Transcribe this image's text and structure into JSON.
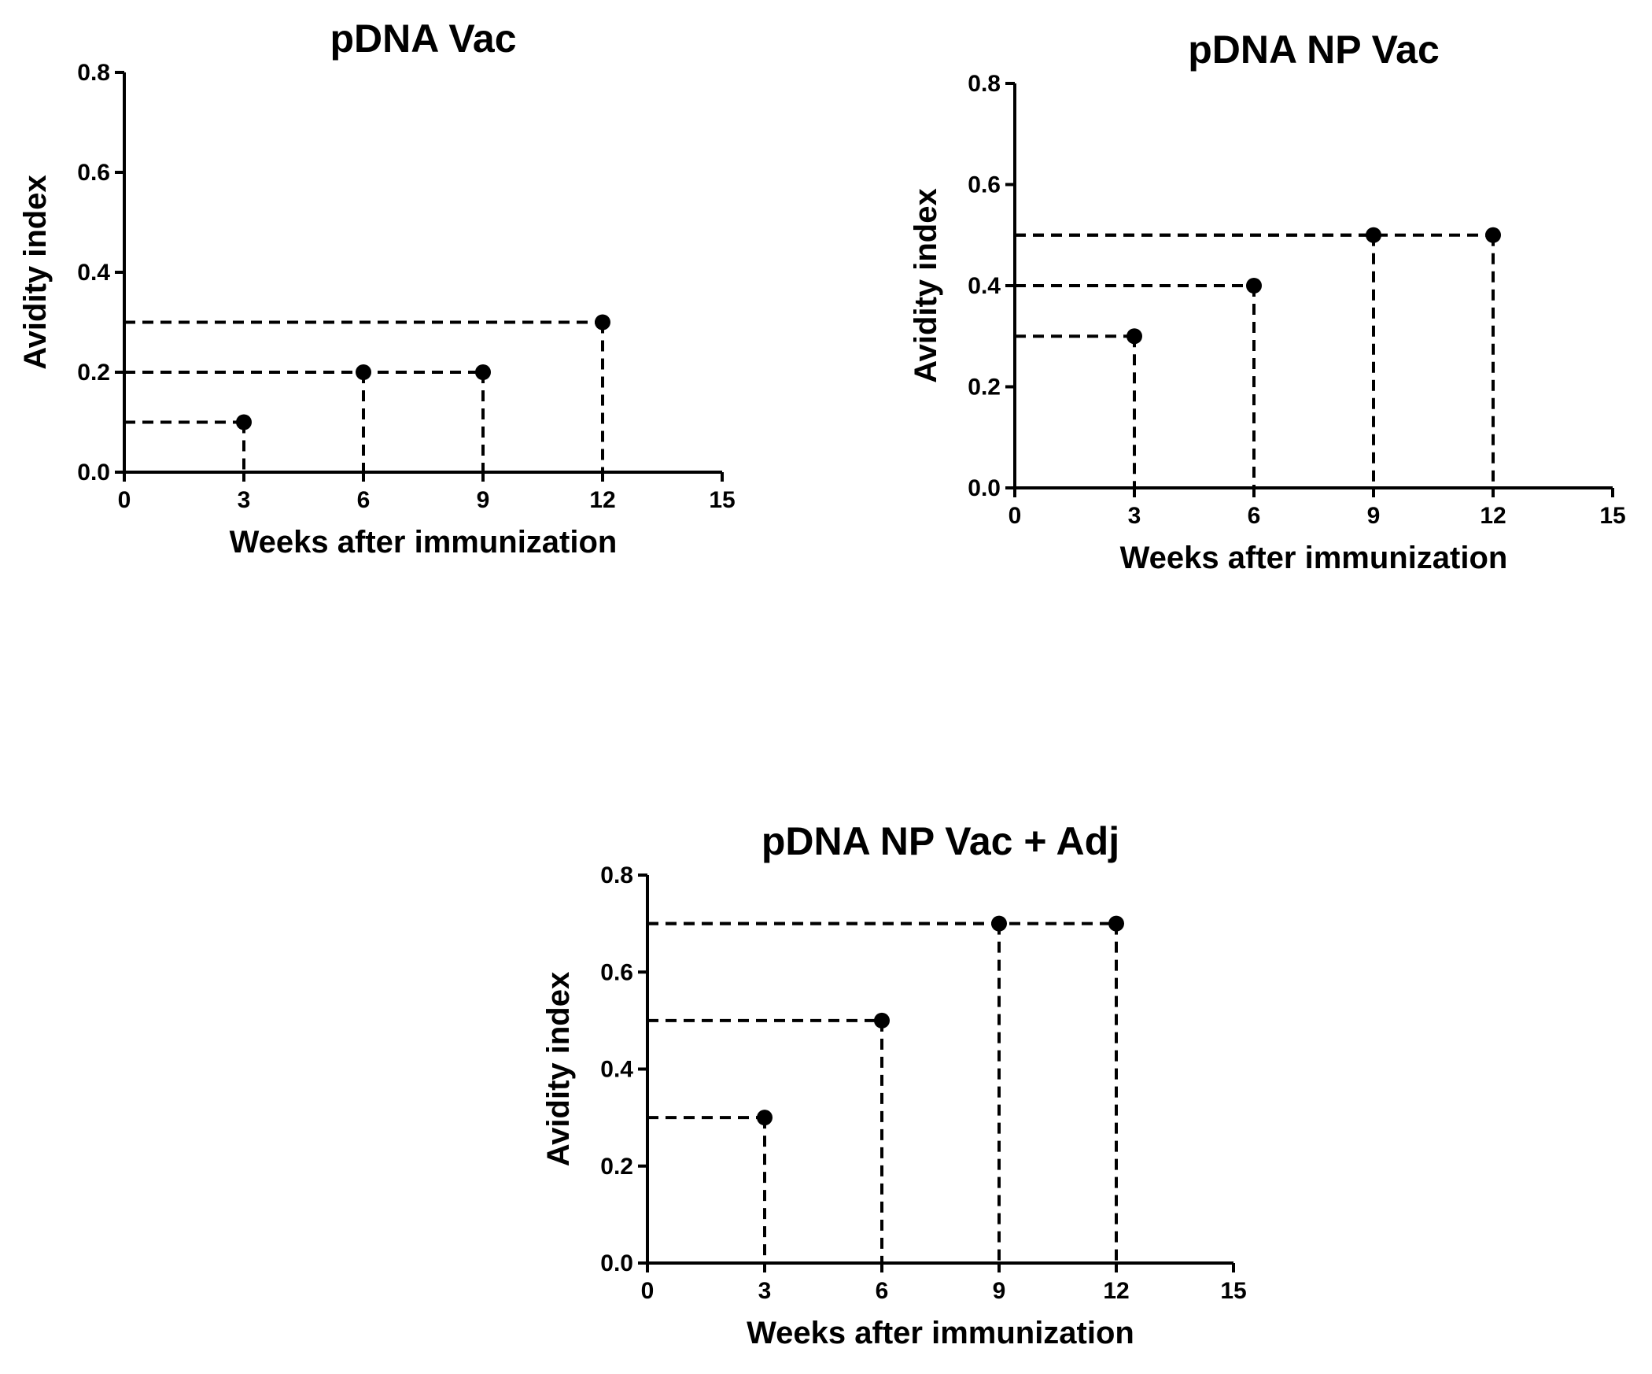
{
  "chart_data": [
    {
      "type": "scatter",
      "title": "pDNA Vac",
      "xlabel": "Weeks after immunization",
      "ylabel": "Avidity index",
      "xlim": [
        0,
        15
      ],
      "ylim": [
        0,
        0.8
      ],
      "xticks": [
        "0",
        "3",
        "6",
        "9",
        "12",
        "15"
      ],
      "yticks": [
        "0.0",
        "0.2",
        "0.4",
        "0.6",
        "0.8"
      ],
      "grid": false,
      "dropline_style": "dashed",
      "series": [
        {
          "x": [
            3,
            6,
            9,
            12
          ],
          "y": [
            0.1,
            0.2,
            0.2,
            0.3
          ]
        }
      ]
    },
    {
      "type": "scatter",
      "title": "pDNA NP Vac",
      "xlabel": "Weeks after immunization",
      "ylabel": "Avidity index",
      "xlim": [
        0,
        15
      ],
      "ylim": [
        0,
        0.8
      ],
      "xticks": [
        "0",
        "3",
        "6",
        "9",
        "12",
        "15"
      ],
      "yticks": [
        "0.0",
        "0.2",
        "0.4",
        "0.6",
        "0.8"
      ],
      "grid": false,
      "dropline_style": "dashed",
      "series": [
        {
          "x": [
            3,
            6,
            9,
            12
          ],
          "y": [
            0.3,
            0.4,
            0.5,
            0.5
          ]
        }
      ]
    },
    {
      "type": "scatter",
      "title": "pDNA NP Vac + Adj",
      "xlabel": "Weeks after immunization",
      "ylabel": "Avidity index",
      "xlim": [
        0,
        15
      ],
      "ylim": [
        0,
        0.8
      ],
      "xticks": [
        "0",
        "3",
        "6",
        "9",
        "12",
        "15"
      ],
      "yticks": [
        "0.0",
        "0.2",
        "0.4",
        "0.6",
        "0.8"
      ],
      "grid": false,
      "dropline_style": "dashed",
      "series": [
        {
          "x": [
            3,
            6,
            9,
            12
          ],
          "y": [
            0.3,
            0.5,
            0.7,
            0.7
          ]
        }
      ]
    }
  ]
}
